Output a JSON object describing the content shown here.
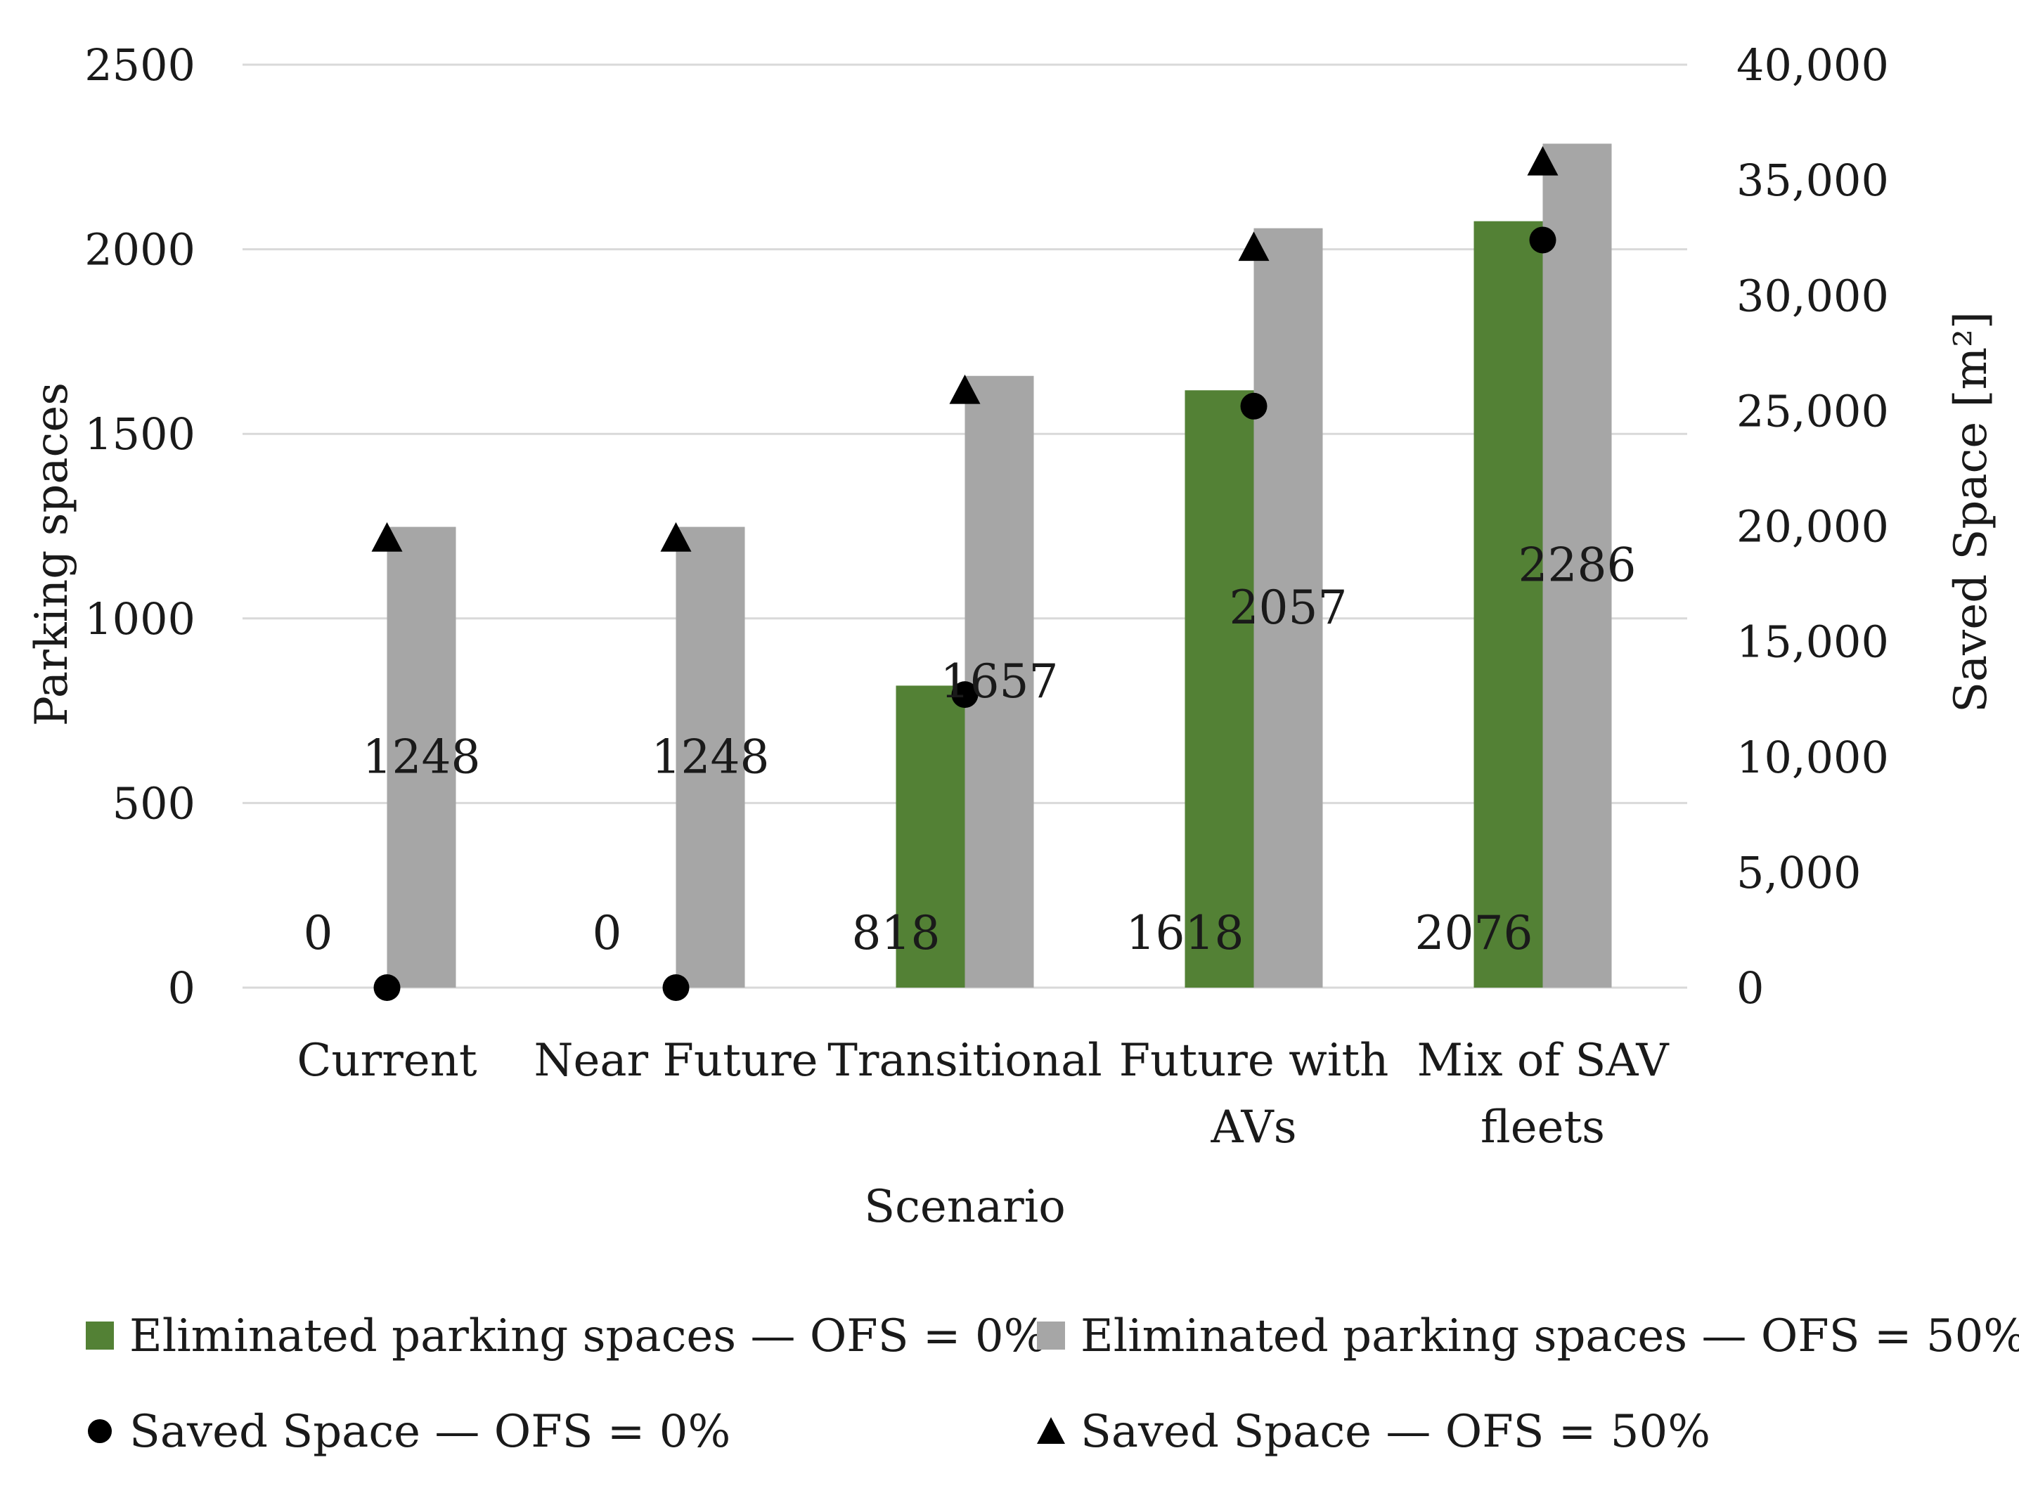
{
  "chart_data": {
    "type": "bar",
    "categories": [
      [
        "Current"
      ],
      [
        "Near Future"
      ],
      [
        "Transitional"
      ],
      [
        "Future with",
        "AVs"
      ],
      [
        "Mix of SAV",
        "fleets"
      ]
    ],
    "bar_series": [
      {
        "name": "Eliminated parking spaces — OFS = 0%",
        "values": [
          0,
          0,
          818,
          1618,
          2076
        ],
        "color": "#538135",
        "labels": [
          "0",
          "0",
          "818",
          "1618",
          "2076"
        ]
      },
      {
        "name": "Eliminated parking spaces — OFS = 50%",
        "values": [
          1248,
          1248,
          1657,
          2057,
          2286
        ],
        "color": "#a6a6a6",
        "labels": [
          "1248",
          "1248",
          "1657",
          "2057",
          "2286"
        ]
      }
    ],
    "marker_series": [
      {
        "name": "Saved Space — OFS = 0%",
        "marker": "circle",
        "axis": "right",
        "values": [
          0,
          0,
          12700,
          25200,
          32400
        ],
        "color": "#000000"
      },
      {
        "name": "Saved Space — OFS = 50%",
        "marker": "triangle",
        "axis": "right",
        "values": [
          19500,
          19500,
          25900,
          32100,
          35800
        ],
        "color": "#000000"
      }
    ],
    "xlabel": "Scenario",
    "ylabel": "Parking spaces",
    "y2label": "Saved Space [m²]",
    "ylim": [
      0,
      2500
    ],
    "y2lim": [
      0,
      40000
    ],
    "yticks": [
      "0",
      "500",
      "1000",
      "1500",
      "2000",
      "2500"
    ],
    "y2ticks": [
      "0",
      "5,000",
      "10,000",
      "15,000",
      "20,000",
      "25,000",
      "30,000",
      "35,000",
      "40,000"
    ],
    "grid": true,
    "legend_position": "bottom"
  }
}
